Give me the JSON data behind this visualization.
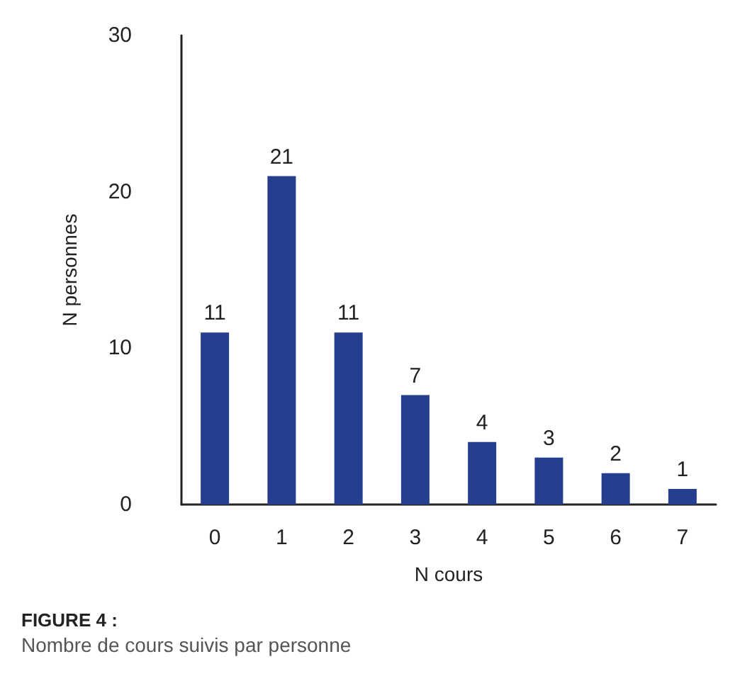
{
  "chart_data": {
    "type": "bar",
    "title": "FIGURE 4 :",
    "subtitle": "Nombre de cours suivis par personne",
    "xlabel": "N cours",
    "ylabel": "N personnes",
    "categories": [
      "0",
      "1",
      "2",
      "3",
      "4",
      "5",
      "6",
      "7"
    ],
    "values": [
      11,
      21,
      11,
      7,
      4,
      3,
      2,
      1
    ],
    "color": "#253f8e",
    "ylim": [
      0,
      30
    ],
    "yticks": [
      0,
      10,
      20,
      30
    ],
    "grid": false,
    "data_labels": true
  }
}
